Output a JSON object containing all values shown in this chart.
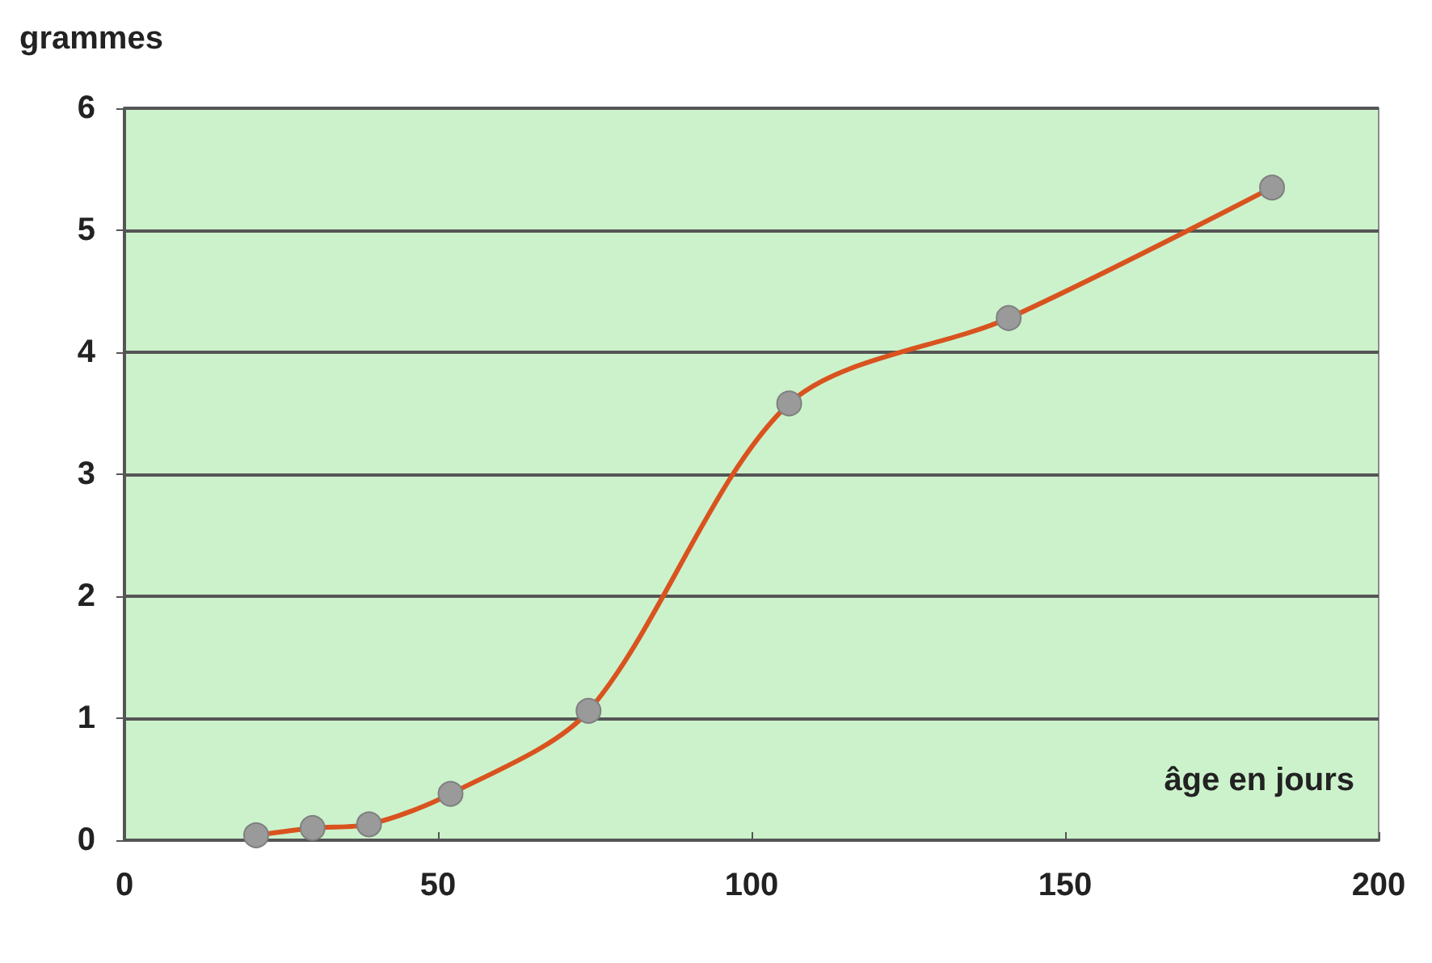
{
  "chart_data": {
    "type": "line",
    "xlabel": "âge en jours",
    "ylabel": "grammes",
    "x": [
      21,
      30,
      39,
      52,
      74,
      106,
      141,
      183
    ],
    "series": [
      {
        "color": "#d9531e",
        "values": [
          0.04,
          0.1,
          0.13,
          0.38,
          1.06,
          3.58,
          4.28,
          5.35
        ]
      }
    ],
    "xlim": [
      0,
      200
    ],
    "xticks": [
      0,
      50,
      100,
      150,
      200
    ],
    "ylim": [
      0,
      6
    ],
    "yticks": [
      0,
      1,
      2,
      3,
      4,
      5,
      6
    ],
    "grid": "y",
    "marker": "circle",
    "line_style": "solid"
  }
}
